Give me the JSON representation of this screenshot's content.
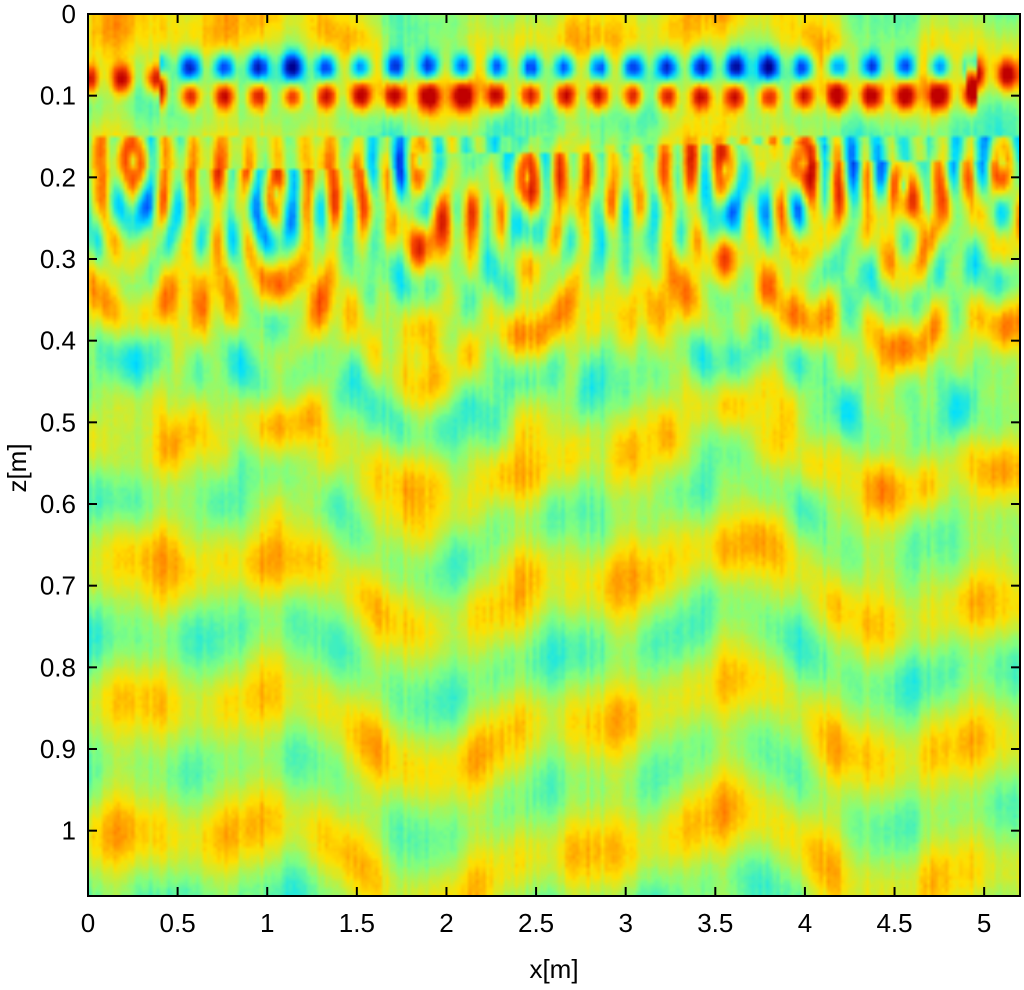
{
  "chart_data": {
    "type": "heatmap",
    "title": "",
    "xlabel": "x[m]",
    "ylabel": "z[m]",
    "xlim": [
      0,
      5.2
    ],
    "ylim": [
      0,
      1.08
    ],
    "y_axis_inverted": true,
    "x_ticks": [
      0,
      0.5,
      1,
      1.5,
      2,
      2.5,
      3,
      3.5,
      4,
      4.5,
      5
    ],
    "x_tick_labels": [
      "0",
      "0.5",
      "1",
      "1.5",
      "2",
      "2.5",
      "3",
      "3.5",
      "4",
      "4.5",
      "5"
    ],
    "y_ticks": [
      0,
      0.1,
      0.2,
      0.3,
      0.4,
      0.5,
      0.6,
      0.7,
      0.8,
      0.9,
      1
    ],
    "y_tick_labels": [
      "0",
      "0.1",
      "0.2",
      "0.3",
      "0.4",
      "0.5",
      "0.6",
      "0.7",
      "0.8",
      "0.9",
      "1"
    ],
    "colormap": [
      "#00008f",
      "#0050ff",
      "#00dfff",
      "#80ff80",
      "#ffe000",
      "#ff5000",
      "#c00000"
    ],
    "background_value_color": "#a8f060",
    "grid": false,
    "legend": "none",
    "features": {
      "strong_rows": [
        {
          "z": 0.065,
          "polarity": "negative",
          "x_start": 0.45,
          "x_end": 4.9
        },
        {
          "z": 0.1,
          "polarity": "positive",
          "x_start": 0.45,
          "x_end": 4.9
        },
        {
          "z": 0.08,
          "polarity": "positive",
          "x_start": 0.0,
          "x_end": 0.4
        },
        {
          "z": 0.075,
          "polarity": "positive",
          "x_start": 4.95,
          "x_end": 5.2
        }
      ],
      "hyperbola_apexes": [
        {
          "x": 0.25,
          "z": 0.2
        },
        {
          "x": 1.05,
          "z": 0.24
        },
        {
          "x": 1.85,
          "z": 0.2
        },
        {
          "x": 2.45,
          "z": 0.22
        },
        {
          "x": 3.55,
          "z": 0.21
        },
        {
          "x": 4.0,
          "z": 0.2
        },
        {
          "x": 4.55,
          "z": 0.23
        },
        {
          "x": 5.1,
          "z": 0.2
        }
      ]
    }
  }
}
